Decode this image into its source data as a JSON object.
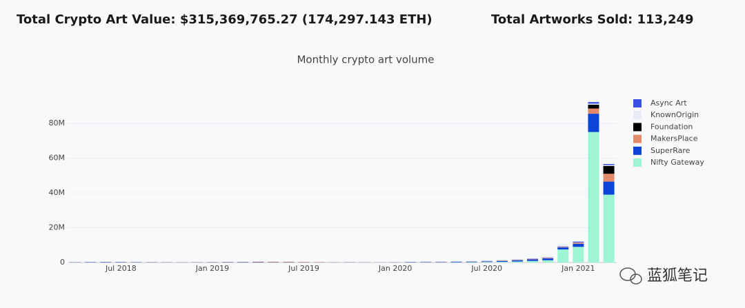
{
  "header": {
    "total_value": "Total Crypto Art Value: $315,369,765.27 (174,297.143 ETH)",
    "total_sold": "Total Artworks Sold: 113,249"
  },
  "watermark": "蓝狐笔记",
  "chart_data": {
    "type": "bar",
    "stacked": true,
    "title": "Monthly crypto art volume",
    "x": [
      "2018-04",
      "2018-05",
      "2018-06",
      "2018-07",
      "2018-08",
      "2018-09",
      "2018-10",
      "2018-11",
      "2018-12",
      "2019-01",
      "2019-02",
      "2019-03",
      "2019-04",
      "2019-05",
      "2019-06",
      "2019-07",
      "2019-08",
      "2019-09",
      "2019-10",
      "2019-11",
      "2019-12",
      "2020-01",
      "2020-02",
      "2020-03",
      "2020-04",
      "2020-05",
      "2020-06",
      "2020-07",
      "2020-08",
      "2020-09",
      "2020-10",
      "2020-11",
      "2020-12",
      "2021-01",
      "2021-02",
      "2021-03"
    ],
    "xticks": [
      {
        "value": "2018-07",
        "label": "Jul 2018"
      },
      {
        "value": "2019-01",
        "label": "Jan 2019"
      },
      {
        "value": "2019-07",
        "label": "Jul 2019"
      },
      {
        "value": "2020-01",
        "label": "Jan 2020"
      },
      {
        "value": "2020-07",
        "label": "Jul 2020"
      },
      {
        "value": "2021-01",
        "label": "Jan 2021"
      }
    ],
    "ylim": [
      0,
      94000000
    ],
    "yticks": [
      0,
      {
        "value": 20000000,
        "label": "20M"
      },
      {
        "value": 40000000,
        "label": "40M"
      },
      {
        "value": 60000000,
        "label": "60M"
      },
      {
        "value": 80000000,
        "label": "80M"
      }
    ],
    "grid": true,
    "series": [
      {
        "name": "Nifty Gateway",
        "color": "#9ef5d4",
        "values": [
          0,
          0,
          0,
          0,
          0,
          0,
          0,
          0,
          0,
          0,
          0,
          0,
          0,
          0,
          0,
          0,
          0,
          0,
          0,
          0,
          0,
          0,
          50000,
          100000,
          100000,
          150000,
          200000,
          300000,
          400000,
          600000,
          900000,
          1300000,
          7500000,
          9000000,
          75000000,
          39000000
        ]
      },
      {
        "name": "SuperRare",
        "color": "#0b45d8",
        "values": [
          150000,
          200000,
          250000,
          200000,
          180000,
          150000,
          120000,
          100000,
          120000,
          150000,
          180000,
          200000,
          200000,
          150000,
          150000,
          120000,
          100000,
          100000,
          120000,
          100000,
          100000,
          120000,
          150000,
          200000,
          200000,
          250000,
          250000,
          300000,
          500000,
          700000,
          900000,
          1100000,
          1200000,
          1800000,
          10500000,
          7500000
        ]
      },
      {
        "name": "MakersPlace",
        "color": "#e38a6b",
        "values": [
          50000,
          50000,
          80000,
          80000,
          60000,
          80000,
          100000,
          100000,
          100000,
          120000,
          150000,
          150000,
          300000,
          300000,
          300000,
          250000,
          200000,
          100000,
          80000,
          80000,
          60000,
          60000,
          80000,
          80000,
          100000,
          100000,
          120000,
          150000,
          200000,
          200000,
          250000,
          300000,
          300000,
          600000,
          3000000,
          4500000
        ]
      },
      {
        "name": "Foundation",
        "color": "#000000",
        "values": [
          0,
          0,
          0,
          0,
          0,
          0,
          0,
          0,
          0,
          0,
          0,
          0,
          0,
          0,
          0,
          0,
          0,
          0,
          0,
          0,
          0,
          0,
          0,
          0,
          0,
          0,
          0,
          0,
          0,
          0,
          0,
          0,
          0,
          0,
          2200000,
          4500000
        ]
      },
      {
        "name": "KnownOrigin",
        "color": "#e9ebf6",
        "values": [
          30000,
          30000,
          30000,
          30000,
          30000,
          30000,
          30000,
          40000,
          40000,
          40000,
          40000,
          40000,
          40000,
          40000,
          40000,
          40000,
          40000,
          40000,
          40000,
          40000,
          40000,
          50000,
          50000,
          50000,
          50000,
          50000,
          50000,
          50000,
          50000,
          60000,
          80000,
          80000,
          100000,
          100000,
          600000,
          500000
        ]
      },
      {
        "name": "Async Art",
        "color": "#3b4fe2",
        "values": [
          0,
          0,
          0,
          0,
          0,
          0,
          0,
          0,
          0,
          0,
          0,
          0,
          0,
          0,
          0,
          0,
          0,
          0,
          0,
          0,
          0,
          0,
          50000,
          60000,
          60000,
          80000,
          80000,
          100000,
          100000,
          120000,
          150000,
          150000,
          200000,
          500000,
          900000,
          600000
        ]
      }
    ]
  }
}
